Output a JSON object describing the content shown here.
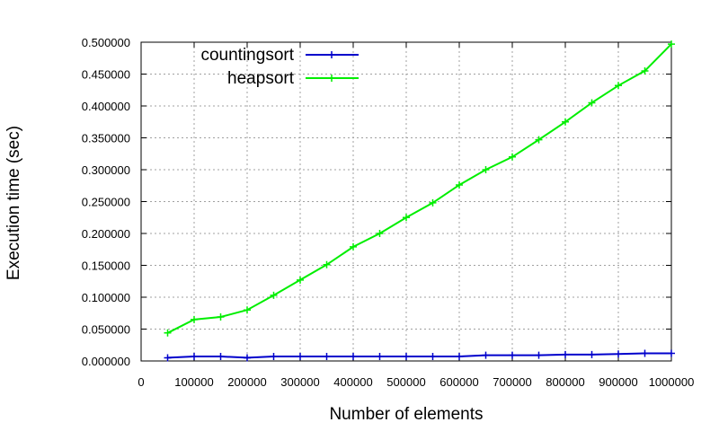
{
  "chart_data": {
    "type": "line",
    "title": "",
    "xlabel": "Number of elements",
    "ylabel": "Execution time (sec)",
    "xlim": [
      0,
      1000000
    ],
    "ylim": [
      0,
      0.5
    ],
    "x_ticks": [
      0,
      100000,
      200000,
      300000,
      400000,
      500000,
      600000,
      700000,
      800000,
      900000,
      1000000
    ],
    "x_tick_labels": [
      "0",
      "100000",
      "200000",
      "300000",
      "400000",
      "500000",
      "600000",
      "700000",
      "800000",
      "900000",
      "1000000"
    ],
    "y_ticks": [
      0,
      0.05,
      0.1,
      0.15,
      0.2,
      0.25,
      0.3,
      0.35,
      0.4,
      0.45,
      0.5
    ],
    "y_tick_labels": [
      "0.000000",
      "0.050000",
      "0.100000",
      "0.150000",
      "0.200000",
      "0.250000",
      "0.300000",
      "0.350000",
      "0.400000",
      "0.450000",
      "0.500000"
    ],
    "grid": true,
    "legend_position": "top-left",
    "x": [
      50000,
      100000,
      150000,
      200000,
      250000,
      300000,
      350000,
      400000,
      450000,
      500000,
      550000,
      600000,
      650000,
      700000,
      750000,
      800000,
      850000,
      900000,
      950000,
      1000000
    ],
    "series": [
      {
        "name": "countingsort",
        "color": "#0000cc",
        "values": [
          0.005,
          0.007,
          0.007,
          0.005,
          0.007,
          0.007,
          0.007,
          0.007,
          0.007,
          0.007,
          0.007,
          0.007,
          0.009,
          0.009,
          0.009,
          0.01,
          0.01,
          0.011,
          0.012,
          0.012
        ]
      },
      {
        "name": "heapsort",
        "color": "#00ee00",
        "values": [
          0.044,
          0.065,
          0.069,
          0.08,
          0.103,
          0.127,
          0.151,
          0.179,
          0.2,
          0.225,
          0.248,
          0.276,
          0.3,
          0.32,
          0.347,
          0.375,
          0.405,
          0.432,
          0.455,
          0.497
        ]
      }
    ]
  }
}
